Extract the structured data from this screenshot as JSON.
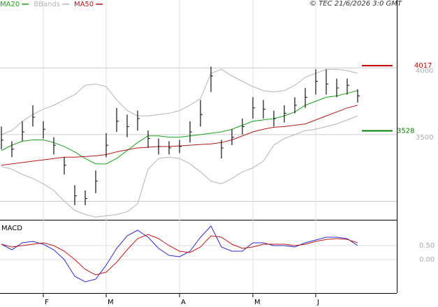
{
  "chart_data": {
    "type": "ohlc",
    "timestamp": "© TEC 21/6/2026 3:0 GMT",
    "categories": [
      null,
      null,
      null,
      null,
      "F",
      null,
      null,
      null,
      null,
      null,
      "M",
      null,
      null,
      null,
      null,
      null,
      null,
      "A",
      null,
      null,
      null,
      null,
      null,
      null,
      "M",
      null,
      null,
      null,
      null,
      null,
      "J",
      null,
      null,
      null,
      null
    ],
    "high": [
      3560,
      3450,
      3600,
      3720,
      3600,
      3480,
      3330,
      3120,
      3080,
      3230,
      3510,
      3700,
      3650,
      3680,
      3530,
      3470,
      3450,
      3460,
      3600,
      3760,
      4010,
      3460,
      3540,
      3620,
      3780,
      3760,
      3680,
      3720,
      3780,
      3850,
      3990,
      3990,
      3920,
      3920,
      3840
    ],
    "low": [
      3390,
      3330,
      3450,
      3560,
      3470,
      3350,
      3200,
      2970,
      2970,
      3060,
      3330,
      3520,
      3480,
      3530,
      3400,
      3350,
      3350,
      3360,
      3440,
      3560,
      3820,
      3320,
      3420,
      3500,
      3620,
      3620,
      3560,
      3590,
      3660,
      3700,
      3800,
      3800,
      3780,
      3800,
      3740
    ],
    "close": [
      3458,
      3390,
      3520,
      3630,
      3540,
      3420,
      3270,
      3040,
      3020,
      3150,
      3420,
      3600,
      3560,
      3620,
      3470,
      3410,
      3400,
      3410,
      3520,
      3650,
      3940,
      3400,
      3480,
      3560,
      3700,
      3690,
      3620,
      3660,
      3720,
      3780,
      3900,
      3880,
      3850,
      3870,
      3790
    ],
    "ylim": [
      2860,
      4500
    ],
    "yticks": [
      3500,
      4000
    ],
    "series": [
      {
        "name": "MA20",
        "color": "#1aa01a",
        "values": [
          3380,
          3420,
          3450,
          3460,
          3460,
          3440,
          3410,
          3370,
          3320,
          3280,
          3280,
          3320,
          3380,
          3440,
          3490,
          3490,
          3480,
          3480,
          3490,
          3500,
          3510,
          3520,
          3540,
          3570,
          3600,
          3610,
          3620,
          3640,
          3670,
          3720,
          3750,
          3780,
          3790,
          3810,
          3830
        ]
      },
      {
        "name": "BBands",
        "color": "#b4b4b4",
        "upper": [
          3500,
          3530,
          3600,
          3650,
          3690,
          3720,
          3760,
          3800,
          3870,
          3880,
          3860,
          3760,
          3680,
          3640,
          3640,
          3650,
          3660,
          3680,
          3720,
          3770,
          3960,
          3990,
          3940,
          3900,
          3860,
          3830,
          3820,
          3830,
          3870,
          3930,
          3960,
          3990,
          3990,
          3980,
          3960
        ],
        "lower": [
          3260,
          3240,
          3200,
          3170,
          3130,
          3080,
          3000,
          2930,
          2900,
          2880,
          2890,
          2900,
          2920,
          2980,
          3240,
          3320,
          3330,
          3320,
          3280,
          3220,
          3150,
          3130,
          3170,
          3220,
          3250,
          3300,
          3420,
          3470,
          3500,
          3530,
          3540,
          3560,
          3580,
          3610,
          3640
        ]
      },
      {
        "name": "MA50",
        "color": "#b01818",
        "values": [
          3270,
          3280,
          3290,
          3300,
          3310,
          3320,
          3330,
          3330,
          3335,
          3340,
          3350,
          3370,
          3385,
          3400,
          3405,
          3410,
          3410,
          3415,
          3420,
          3425,
          3430,
          3440,
          3460,
          3490,
          3520,
          3540,
          3555,
          3560,
          3570,
          3580,
          3610,
          3640,
          3670,
          3700,
          3720
        ]
      }
    ],
    "levels": [
      {
        "value": 4017,
        "color": "#c00000"
      },
      {
        "value": 3528,
        "color": "#008000"
      }
    ],
    "macd": {
      "title": "MACD",
      "ylim": [
        -1.2,
        1.35
      ],
      "yticks": [
        {
          "value": 0.5,
          "label": "0.50"
        },
        {
          "value": 0,
          "label": "0.00"
        }
      ],
      "series": [
        {
          "color": "#2a2ad0",
          "values": [
            0.55,
            0.35,
            0.6,
            0.65,
            0.55,
            0.35,
            0.0,
            -0.6,
            -0.8,
            -0.7,
            -0.2,
            0.4,
            0.85,
            1.05,
            0.8,
            0.4,
            0.15,
            0.1,
            0.3,
            0.8,
            1.2,
            0.45,
            0.3,
            0.3,
            0.6,
            0.6,
            0.5,
            0.5,
            0.45,
            0.6,
            0.7,
            0.8,
            0.8,
            0.75,
            0.5
          ]
        },
        {
          "color": "#c01818",
          "values": [
            0.55,
            0.45,
            0.5,
            0.55,
            0.6,
            0.5,
            0.3,
            0.0,
            -0.35,
            -0.55,
            -0.45,
            -0.1,
            0.35,
            0.75,
            0.9,
            0.75,
            0.5,
            0.3,
            0.25,
            0.45,
            0.85,
            0.8,
            0.55,
            0.4,
            0.45,
            0.55,
            0.55,
            0.55,
            0.5,
            0.55,
            0.65,
            0.72,
            0.75,
            0.72,
            0.6
          ]
        }
      ]
    }
  }
}
